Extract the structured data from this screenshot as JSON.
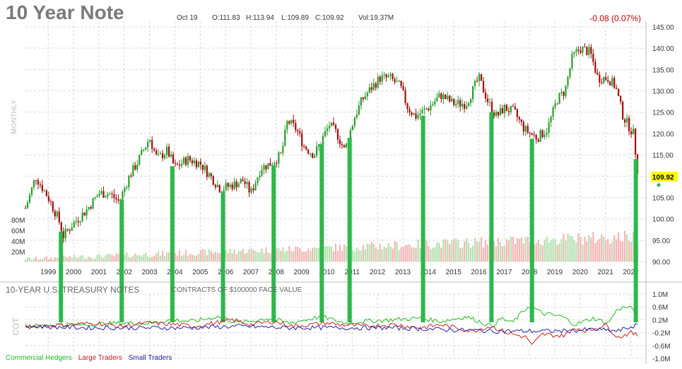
{
  "header": {
    "title": "10 Year Note",
    "date": "Oct 19",
    "open": "O:111.83",
    "high": "H:113.94",
    "low": "L:109.89",
    "close": "C:109.92",
    "volume": "Vol:19.37M",
    "change": "-0.08 (0.07%)"
  },
  "labels": {
    "period": "MONTHLY",
    "cot_side": "COT",
    "cot_title": "10-YEAR U.S. TREASURY NOTES",
    "cot_subtitle": "CONTRACTS OF $100000 FACE VALUE",
    "last_price": "109.92"
  },
  "colors": {
    "up": "#2e9e2e",
    "down": "#a01010",
    "vol_up": "#b8e0b0",
    "vol_down": "#f4b6b6",
    "marker": "#2db84b",
    "commercial": "#22bb22",
    "large": "#cc2222",
    "small": "#2222aa",
    "price_tag": "#ffff00"
  },
  "chart_data": [
    {
      "type": "candlestick",
      "title": "10 Year Note",
      "x_ticks": [
        "1999",
        "2000",
        "2001",
        "2002",
        "2003",
        "2004",
        "2005",
        "2006",
        "2007",
        "2008",
        "2009",
        "2010",
        "2011",
        "2012",
        "2013",
        "2014",
        "2015",
        "2016",
        "2017",
        "2018",
        "2019",
        "2020",
        "2021",
        "2022"
      ],
      "y_ticks": [
        "145.00",
        "140.00",
        "135.00",
        "130.00",
        "125.00",
        "120.00",
        "115.00",
        "110.00",
        "105.00",
        "100.00",
        "95.00",
        "90.00"
      ],
      "ylim": [
        90,
        145
      ],
      "xlim": [
        1998.6,
        2023.1
      ],
      "price_path": [
        [
          1998.6,
          102.5
        ],
        [
          1998.8,
          106
        ],
        [
          1999.0,
          110
        ],
        [
          1999.5,
          105
        ],
        [
          1999.9,
          100
        ],
        [
          2000.1,
          96
        ],
        [
          2000.5,
          99
        ],
        [
          2001.0,
          102
        ],
        [
          2001.5,
          106
        ],
        [
          2001.9,
          106
        ],
        [
          2002.3,
          104
        ],
        [
          2002.7,
          110
        ],
        [
          2003.0,
          113
        ],
        [
          2003.5,
          119
        ],
        [
          2003.8,
          114
        ],
        [
          2004.2,
          116
        ],
        [
          2004.5,
          112
        ],
        [
          2005.0,
          114
        ],
        [
          2005.5,
          113
        ],
        [
          2005.9,
          110
        ],
        [
          2006.3,
          107
        ],
        [
          2006.8,
          108
        ],
        [
          2007.2,
          109
        ],
        [
          2007.5,
          106
        ],
        [
          2007.9,
          112
        ],
        [
          2008.3,
          113
        ],
        [
          2008.7,
          115
        ],
        [
          2008.95,
          123
        ],
        [
          2009.3,
          121
        ],
        [
          2009.6,
          117
        ],
        [
          2010.0,
          115
        ],
        [
          2010.6,
          122
        ],
        [
          2010.9,
          120
        ],
        [
          2011.2,
          116
        ],
        [
          2011.6,
          124
        ],
        [
          2011.9,
          128
        ],
        [
          2012.3,
          131
        ],
        [
          2012.6,
          133
        ],
        [
          2013.0,
          133
        ],
        [
          2013.4,
          131
        ],
        [
          2013.7,
          126
        ],
        [
          2014.0,
          124
        ],
        [
          2014.5,
          126
        ],
        [
          2015.0,
          129
        ],
        [
          2015.5,
          127
        ],
        [
          2016.0,
          127
        ],
        [
          2016.5,
          133
        ],
        [
          2016.9,
          127
        ],
        [
          2017.2,
          124
        ],
        [
          2017.5,
          126
        ],
        [
          2017.9,
          125
        ],
        [
          2018.3,
          121
        ],
        [
          2018.8,
          119
        ],
        [
          2019.2,
          121
        ],
        [
          2019.6,
          128
        ],
        [
          2019.9,
          130
        ],
        [
          2020.2,
          138
        ],
        [
          2020.5,
          140
        ],
        [
          2020.9,
          139
        ],
        [
          2021.2,
          133
        ],
        [
          2021.6,
          133
        ],
        [
          2021.9,
          131
        ],
        [
          2022.2,
          124
        ],
        [
          2022.6,
          120
        ],
        [
          2022.8,
          110
        ]
      ],
      "volume_ticks": [
        "80M",
        "60M",
        "40M",
        "20M"
      ]
    },
    {
      "type": "line",
      "title": "10-YEAR U.S. TREASURY NOTES",
      "subtitle": "CONTRACTS OF $100000 FACE VALUE",
      "y_ticks": [
        "1.0M",
        "0.6M",
        "0.2M",
        "-0.2M",
        "-0.6M",
        "-1.0M"
      ],
      "ylim": [
        -1.0,
        1.0
      ],
      "series": [
        {
          "name": "Commercial Hedgers",
          "key": "commercial",
          "points": [
            [
              1998.6,
              0.0
            ],
            [
              2000.0,
              0.05
            ],
            [
              2001.0,
              0.05
            ],
            [
              2002.4,
              0.1
            ],
            [
              2003.5,
              0.1
            ],
            [
              2004.4,
              0.2
            ],
            [
              2005.2,
              0.15
            ],
            [
              2006.2,
              0.3
            ],
            [
              2007.0,
              0.1
            ],
            [
              2008.2,
              0.25
            ],
            [
              2009.0,
              0.1
            ],
            [
              2010.3,
              0.3
            ],
            [
              2011.2,
              0.1
            ],
            [
              2012.0,
              0.15
            ],
            [
              2013.0,
              0.2
            ],
            [
              2014.2,
              0.25
            ],
            [
              2015.0,
              0.15
            ],
            [
              2016.0,
              0.3
            ],
            [
              2017.0,
              0.0
            ],
            [
              2017.4,
              0.25
            ],
            [
              2017.8,
              0.1
            ],
            [
              2018.5,
              0.65
            ],
            [
              2019.0,
              0.4
            ],
            [
              2019.8,
              0.3
            ],
            [
              2020.3,
              0.05
            ],
            [
              2021.0,
              0.25
            ],
            [
              2021.6,
              0.1
            ],
            [
              2022.0,
              0.55
            ],
            [
              2022.4,
              0.6
            ],
            [
              2022.8,
              0.4
            ]
          ]
        },
        {
          "name": "Large Traders",
          "key": "large",
          "points": [
            [
              1998.6,
              0.0
            ],
            [
              2000.5,
              0.05
            ],
            [
              2001.4,
              0.1
            ],
            [
              2002.3,
              0.0
            ],
            [
              2003.5,
              0.1
            ],
            [
              2004.6,
              0.05
            ],
            [
              2005.3,
              0.0
            ],
            [
              2006.8,
              0.2
            ],
            [
              2007.5,
              0.05
            ],
            [
              2008.4,
              0.15
            ],
            [
              2009.2,
              0.0
            ],
            [
              2010.5,
              0.1
            ],
            [
              2011.0,
              0.05
            ],
            [
              2012.0,
              0.0
            ],
            [
              2013.2,
              0.05
            ],
            [
              2014.2,
              -0.05
            ],
            [
              2015.0,
              0.05
            ],
            [
              2016.2,
              -0.15
            ],
            [
              2017.0,
              0.0
            ],
            [
              2017.6,
              -0.2
            ],
            [
              2018.4,
              -0.35
            ],
            [
              2018.6,
              -0.6
            ],
            [
              2019.0,
              -0.25
            ],
            [
              2019.8,
              -0.3
            ],
            [
              2020.3,
              -0.05
            ],
            [
              2020.8,
              -0.15
            ],
            [
              2021.5,
              0.05
            ],
            [
              2022.0,
              -0.35
            ],
            [
              2022.5,
              -0.2
            ],
            [
              2022.8,
              -0.3
            ]
          ]
        },
        {
          "name": "Small Traders",
          "key": "small",
          "points": [
            [
              1998.6,
              0.0
            ],
            [
              2001.0,
              -0.05
            ],
            [
              2003.0,
              -0.05
            ],
            [
              2005.0,
              -0.05
            ],
            [
              2007.0,
              0.0
            ],
            [
              2009.0,
              -0.05
            ],
            [
              2011.0,
              -0.05
            ],
            [
              2013.0,
              -0.05
            ],
            [
              2015.0,
              -0.1
            ],
            [
              2017.0,
              -0.15
            ],
            [
              2018.5,
              -0.15
            ],
            [
              2020.0,
              -0.15
            ],
            [
              2021.0,
              -0.1
            ],
            [
              2022.0,
              -0.15
            ],
            [
              2022.8,
              0.05
            ]
          ]
        }
      ]
    }
  ],
  "markers": [
    2000.0,
    2002.4,
    2004.4,
    2006.4,
    2008.4,
    2010.3,
    2011.4,
    2014.3,
    2017.0,
    2018.6,
    2022.7
  ],
  "legend": {
    "commercial": "Commercial Hedgers",
    "large": "Large Traders",
    "small": "Small Traders"
  }
}
